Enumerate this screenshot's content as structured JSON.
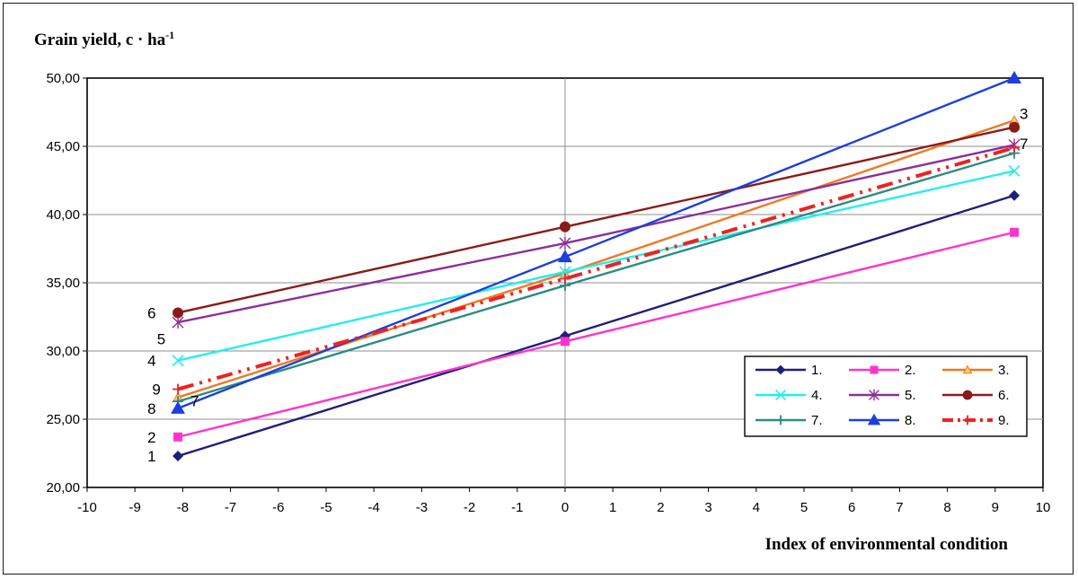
{
  "chart_data": {
    "type": "line",
    "ylabel_main": "Grain yield, c · ha",
    "ylabel_sup": "-1",
    "xlabel": "Index of environmental condition",
    "xlim": [
      -10,
      10
    ],
    "ylim": [
      20,
      50
    ],
    "grid": true,
    "legend_position": "bottom-right",
    "x_ticks": [
      "-10",
      "-9",
      "-8",
      "-7",
      "-6",
      "-5",
      "-4",
      "-3",
      "-2",
      "-1",
      "0",
      "1",
      "2",
      "3",
      "4",
      "5",
      "6",
      "7",
      "8",
      "9",
      "10"
    ],
    "y_ticks": [
      "20,00",
      "25,00",
      "30,00",
      "35,00",
      "40,00",
      "45,00",
      "50,00"
    ],
    "x": [
      -8.1,
      0,
      9.4
    ],
    "series": [
      {
        "name": "1.",
        "label": "1",
        "color": "#1f1f7a",
        "marker": "diamond",
        "values": [
          22.3,
          31.1,
          41.4
        ]
      },
      {
        "name": "2.",
        "label": "2",
        "color": "#ff33cc",
        "marker": "square",
        "values": [
          23.7,
          30.7,
          38.7
        ]
      },
      {
        "name": "3.",
        "label": "3",
        "color": "#f07820",
        "marker": "triangle-small",
        "values": [
          26.6,
          35.7,
          46.9
        ]
      },
      {
        "name": "4.",
        "label": "4",
        "color": "#22eeee",
        "marker": "x",
        "values": [
          29.3,
          35.8,
          43.2
        ]
      },
      {
        "name": "5.",
        "label": "5",
        "color": "#8b2f9b",
        "marker": "star",
        "values": [
          32.1,
          37.9,
          45.1
        ]
      },
      {
        "name": "6.",
        "label": "6",
        "color": "#8b1a1a",
        "marker": "circle",
        "values": [
          32.8,
          39.1,
          46.4
        ]
      },
      {
        "name": "7.",
        "label": "7",
        "color": "#2a8c84",
        "marker": "plus",
        "values": [
          26.3,
          34.8,
          44.5
        ]
      },
      {
        "name": "8.",
        "label": "8",
        "color": "#1c3fe0",
        "marker": "triangle",
        "values": [
          25.8,
          36.9,
          50.0
        ]
      },
      {
        "name": "9.",
        "label": "9",
        "color": "#ee2222",
        "marker": "plus",
        "dashed": true,
        "values": [
          27.2,
          35.3,
          44.9
        ]
      }
    ]
  }
}
